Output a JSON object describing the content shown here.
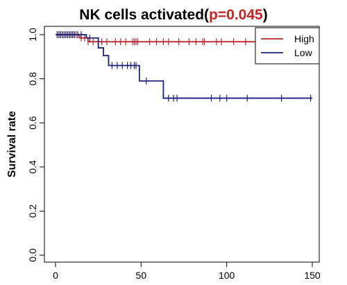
{
  "chart_data": {
    "type": "line",
    "subtype": "kaplan-meier",
    "title_main": "NK cells activated(",
    "title_p": "p=0.045",
    "title_close": ")",
    "title_p_color": "#cc2222",
    "xlabel": "",
    "ylabel": "Survival rate",
    "xlim": [
      0,
      150
    ],
    "ylim": [
      0,
      1
    ],
    "x_ticks": [
      0,
      50,
      100,
      150
    ],
    "y_ticks": [
      0.0,
      0.2,
      0.4,
      0.6,
      0.8,
      1.0
    ],
    "y_tick_labels": [
      "0.0",
      "0.2",
      "0.4",
      "0.6",
      "0.8",
      "1.0"
    ],
    "legend_position": "top-right",
    "series": [
      {
        "name": "High",
        "color": "#c0272d",
        "steps": [
          [
            0,
            1.0
          ],
          [
            14,
            1.0
          ],
          [
            14,
            0.985
          ],
          [
            19,
            0.985
          ],
          [
            19,
            0.968
          ],
          [
            150,
            0.968
          ]
        ],
        "censored": [
          1,
          2,
          3,
          4,
          5,
          6,
          7,
          8,
          9,
          10,
          11,
          12,
          13,
          15,
          17,
          19,
          22,
          27,
          30,
          35,
          38,
          41,
          45,
          46,
          47,
          48,
          55,
          59,
          63,
          66,
          72,
          78,
          82,
          86,
          87,
          94,
          97,
          104,
          111,
          122,
          128
        ]
      },
      {
        "name": "Low",
        "color": "#1c1f7a",
        "steps": [
          [
            0,
            1.0
          ],
          [
            18,
            1.0
          ],
          [
            18,
            0.985
          ],
          [
            25,
            0.985
          ],
          [
            25,
            0.94
          ],
          [
            28,
            0.94
          ],
          [
            28,
            0.905
          ],
          [
            31,
            0.905
          ],
          [
            31,
            0.86
          ],
          [
            49,
            0.86
          ],
          [
            49,
            0.79
          ],
          [
            63,
            0.79
          ],
          [
            63,
            0.712
          ],
          [
            150,
            0.712
          ]
        ],
        "censored": [
          1,
          2,
          3,
          4,
          5,
          6,
          7,
          8,
          9,
          10,
          11,
          13,
          15,
          20,
          33,
          36,
          39,
          42,
          44,
          46,
          47,
          53,
          66,
          69,
          71,
          91,
          96,
          100,
          112,
          132,
          149
        ]
      }
    ]
  }
}
